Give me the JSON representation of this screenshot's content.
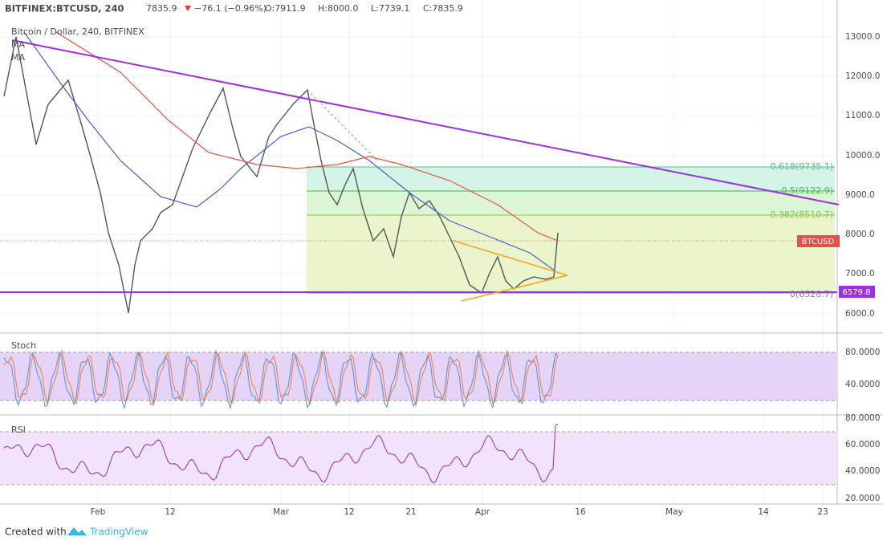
{
  "header": {
    "symbol": "BITFINEX:BTCUSD, 240",
    "price": "7835.9",
    "change": "−76.1 (−0.96%)",
    "open": "O:7911.9",
    "high": "H:8000.0",
    "low": "L:7739.1",
    "close": "C:7835.9"
  },
  "legend": {
    "title": "Bitcoin / Dollar, 240, BITFINEX",
    "ma1": "MA",
    "ma2": "MA"
  },
  "price_axis": [
    "13000.0",
    "12000.0",
    "11000.0",
    "10000.0",
    "9000.0",
    "8000.0",
    "7000.0",
    "6000.0"
  ],
  "fib_labels": [
    "0.618(9735.1)",
    "0.5(9122.9)",
    "0.382(8510.7)",
    "0(6528.7)"
  ],
  "badges": {
    "symbol": "BTCUSD",
    "level": "6579.8"
  },
  "stoch": {
    "title": "Stoch",
    "ticks": [
      "80.0000",
      "40.0000"
    ]
  },
  "rsi": {
    "title": "RSI",
    "ticks": [
      "80.0000",
      "60.0000",
      "40.0000",
      "20.0000"
    ]
  },
  "time_axis": [
    "Feb",
    "12",
    "Mar",
    "12",
    "21",
    "Apr",
    "16",
    "May",
    "14",
    "23"
  ],
  "footer": {
    "created": "Created with",
    "brand": "TradingView"
  }
}
